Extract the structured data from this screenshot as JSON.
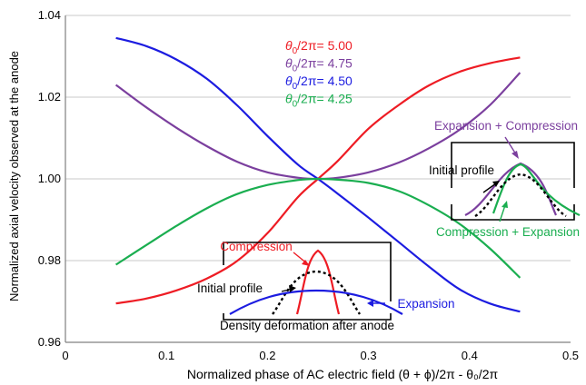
{
  "chart_data": {
    "type": "line",
    "xlabel": "Normalized phase of AC electric field (θ + ϕ)/2π - θ₀/2π",
    "ylabel": "Normalized axial velocity observed at the anode",
    "xlim": [
      0,
      0.5
    ],
    "ylim": [
      0.96,
      1.04
    ],
    "x_ticks": [
      "0",
      "0.1",
      "0.2",
      "0.3",
      "0.4",
      "0.5"
    ],
    "y_ticks": [
      "0.96",
      "0.98",
      "1.00",
      "1.02",
      "1.04"
    ],
    "x_tick_values": [
      0,
      0.1,
      0.2,
      0.3,
      0.4,
      0.5
    ],
    "y_tick_values": [
      0.96,
      0.98,
      1.0,
      1.02,
      1.04
    ],
    "grid": "horizontal",
    "series": [
      {
        "name": "θ0/2π= 5.00",
        "color": "#ee1c24",
        "x": [
          0.05,
          0.08,
          0.11,
          0.14,
          0.17,
          0.2,
          0.23,
          0.25,
          0.27,
          0.3,
          0.33,
          0.36,
          0.39,
          0.42,
          0.45
        ],
        "y": [
          0.9695,
          0.9707,
          0.9727,
          0.9756,
          0.9799,
          0.9867,
          0.9955,
          1.0,
          1.0045,
          1.0123,
          1.0181,
          1.0229,
          1.0262,
          1.0283,
          1.0297
        ]
      },
      {
        "name": "θ0/2π= 4.75",
        "color": "#7b3f9e",
        "x": [
          0.05,
          0.08,
          0.11,
          0.14,
          0.17,
          0.2,
          0.23,
          0.25,
          0.27,
          0.3,
          0.33,
          0.36,
          0.39,
          0.42,
          0.45
        ],
        "y": [
          1.023,
          1.0175,
          1.0125,
          1.008,
          1.0042,
          1.0016,
          1.0003,
          1.0,
          1.0003,
          1.0016,
          1.004,
          1.0075,
          1.012,
          1.018,
          1.026
        ]
      },
      {
        "name": "θ0/2π= 4.50",
        "color": "#1c1ce0",
        "x": [
          0.05,
          0.08,
          0.11,
          0.14,
          0.17,
          0.2,
          0.23,
          0.25,
          0.27,
          0.3,
          0.33,
          0.36,
          0.39,
          0.42,
          0.45
        ],
        "y": [
          1.0345,
          1.0325,
          1.0292,
          1.0245,
          1.018,
          1.0105,
          1.0035,
          1.0,
          0.9963,
          0.9905,
          0.9845,
          0.9785,
          0.973,
          0.9695,
          0.9675
        ]
      },
      {
        "name": "θ0/2π= 4.25",
        "color": "#1aae50",
        "x": [
          0.05,
          0.08,
          0.11,
          0.14,
          0.17,
          0.2,
          0.23,
          0.25,
          0.27,
          0.3,
          0.33,
          0.36,
          0.39,
          0.42,
          0.45
        ],
        "y": [
          0.979,
          0.9838,
          0.9885,
          0.9928,
          0.9963,
          0.9985,
          0.9997,
          1.0,
          0.9998,
          0.999,
          0.997,
          0.9935,
          0.989,
          0.983,
          0.9758
        ]
      }
    ],
    "legend": {
      "placement": "top-center",
      "entries": [
        {
          "label": "θ0/2π= 5.00",
          "color": "#ee1c24"
        },
        {
          "label": "θ0/2π= 4.75",
          "color": "#7b3f9e"
        },
        {
          "label": "θ0/2π= 4.50",
          "color": "#1c1ce0"
        },
        {
          "label": "θ0/2π= 4.25",
          "color": "#1aae50"
        }
      ]
    },
    "legend_prefix": "θ",
    "legend_subscript": "0",
    "annotations": {
      "inset_lower": {
        "compression_label": "Compression",
        "initial_label": "Initial profile",
        "expansion_label": "Expansion",
        "caption": "Density deformation after anode"
      },
      "inset_right": {
        "top_label_a": "Expansion",
        "top_label_b": " + Compression",
        "initial_label": "Initial profile",
        "bottom_label_a": "Compression",
        "bottom_label_b": " + Expansion"
      }
    }
  }
}
